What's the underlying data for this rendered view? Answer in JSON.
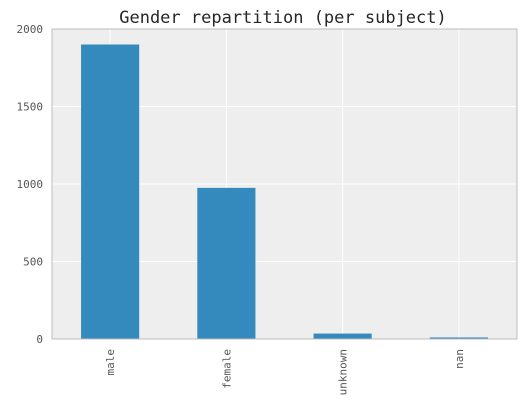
{
  "chart_data": {
    "type": "bar",
    "title": "Gender repartition (per subject)",
    "xlabel": "",
    "ylabel": "",
    "categories": [
      "male",
      "female",
      "unknown",
      "nan"
    ],
    "values": [
      1900,
      975,
      35,
      10
    ],
    "ylim": [
      0,
      2000
    ],
    "yticks": [
      0,
      500,
      1000,
      1500,
      2000
    ],
    "grid": true,
    "colors": {
      "bar": "#348abd",
      "plot_background": "#eeeeee",
      "grid": "#ffffff",
      "frame": "#bcbcbc"
    }
  }
}
